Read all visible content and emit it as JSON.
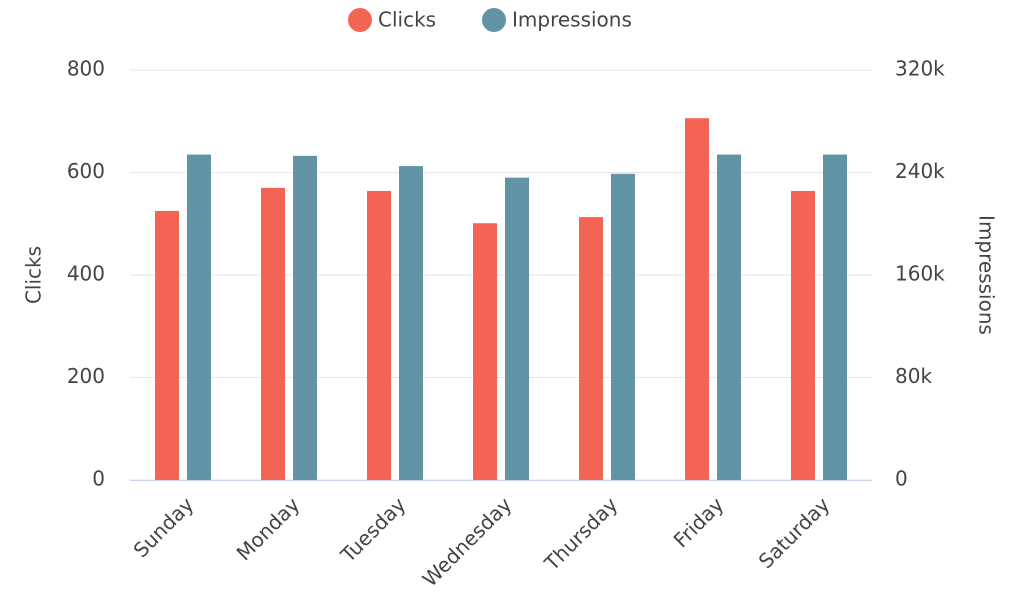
{
  "chart_data": {
    "type": "bar",
    "categories": [
      "Sunday",
      "Monday",
      "Tuesday",
      "Wednesday",
      "Thursday",
      "Friday",
      "Saturday"
    ],
    "series": [
      {
        "name": "Clicks",
        "color": "#f46454",
        "values": [
          525,
          570,
          564,
          501,
          513,
          706,
          564
        ]
      },
      {
        "name": "Impressions",
        "color": "#6294a6",
        "axis": "y2",
        "values": [
          254000,
          253000,
          245000,
          236000,
          239000,
          254000,
          254000
        ]
      }
    ],
    "ylabel": "Clicks",
    "y2label": "Impressions",
    "ylim": [
      0,
      800
    ],
    "yticks": [
      0,
      200,
      400,
      600,
      800
    ],
    "y2lim": [
      0,
      320000
    ],
    "y2ticks": [
      {
        "value": 0,
        "label": "0"
      },
      {
        "value": 80000,
        "label": "80k"
      },
      {
        "value": 160000,
        "label": "160k"
      },
      {
        "value": 240000,
        "label": "240k"
      },
      {
        "value": 320000,
        "label": "320k"
      }
    ],
    "grid": true,
    "legend": "top"
  }
}
